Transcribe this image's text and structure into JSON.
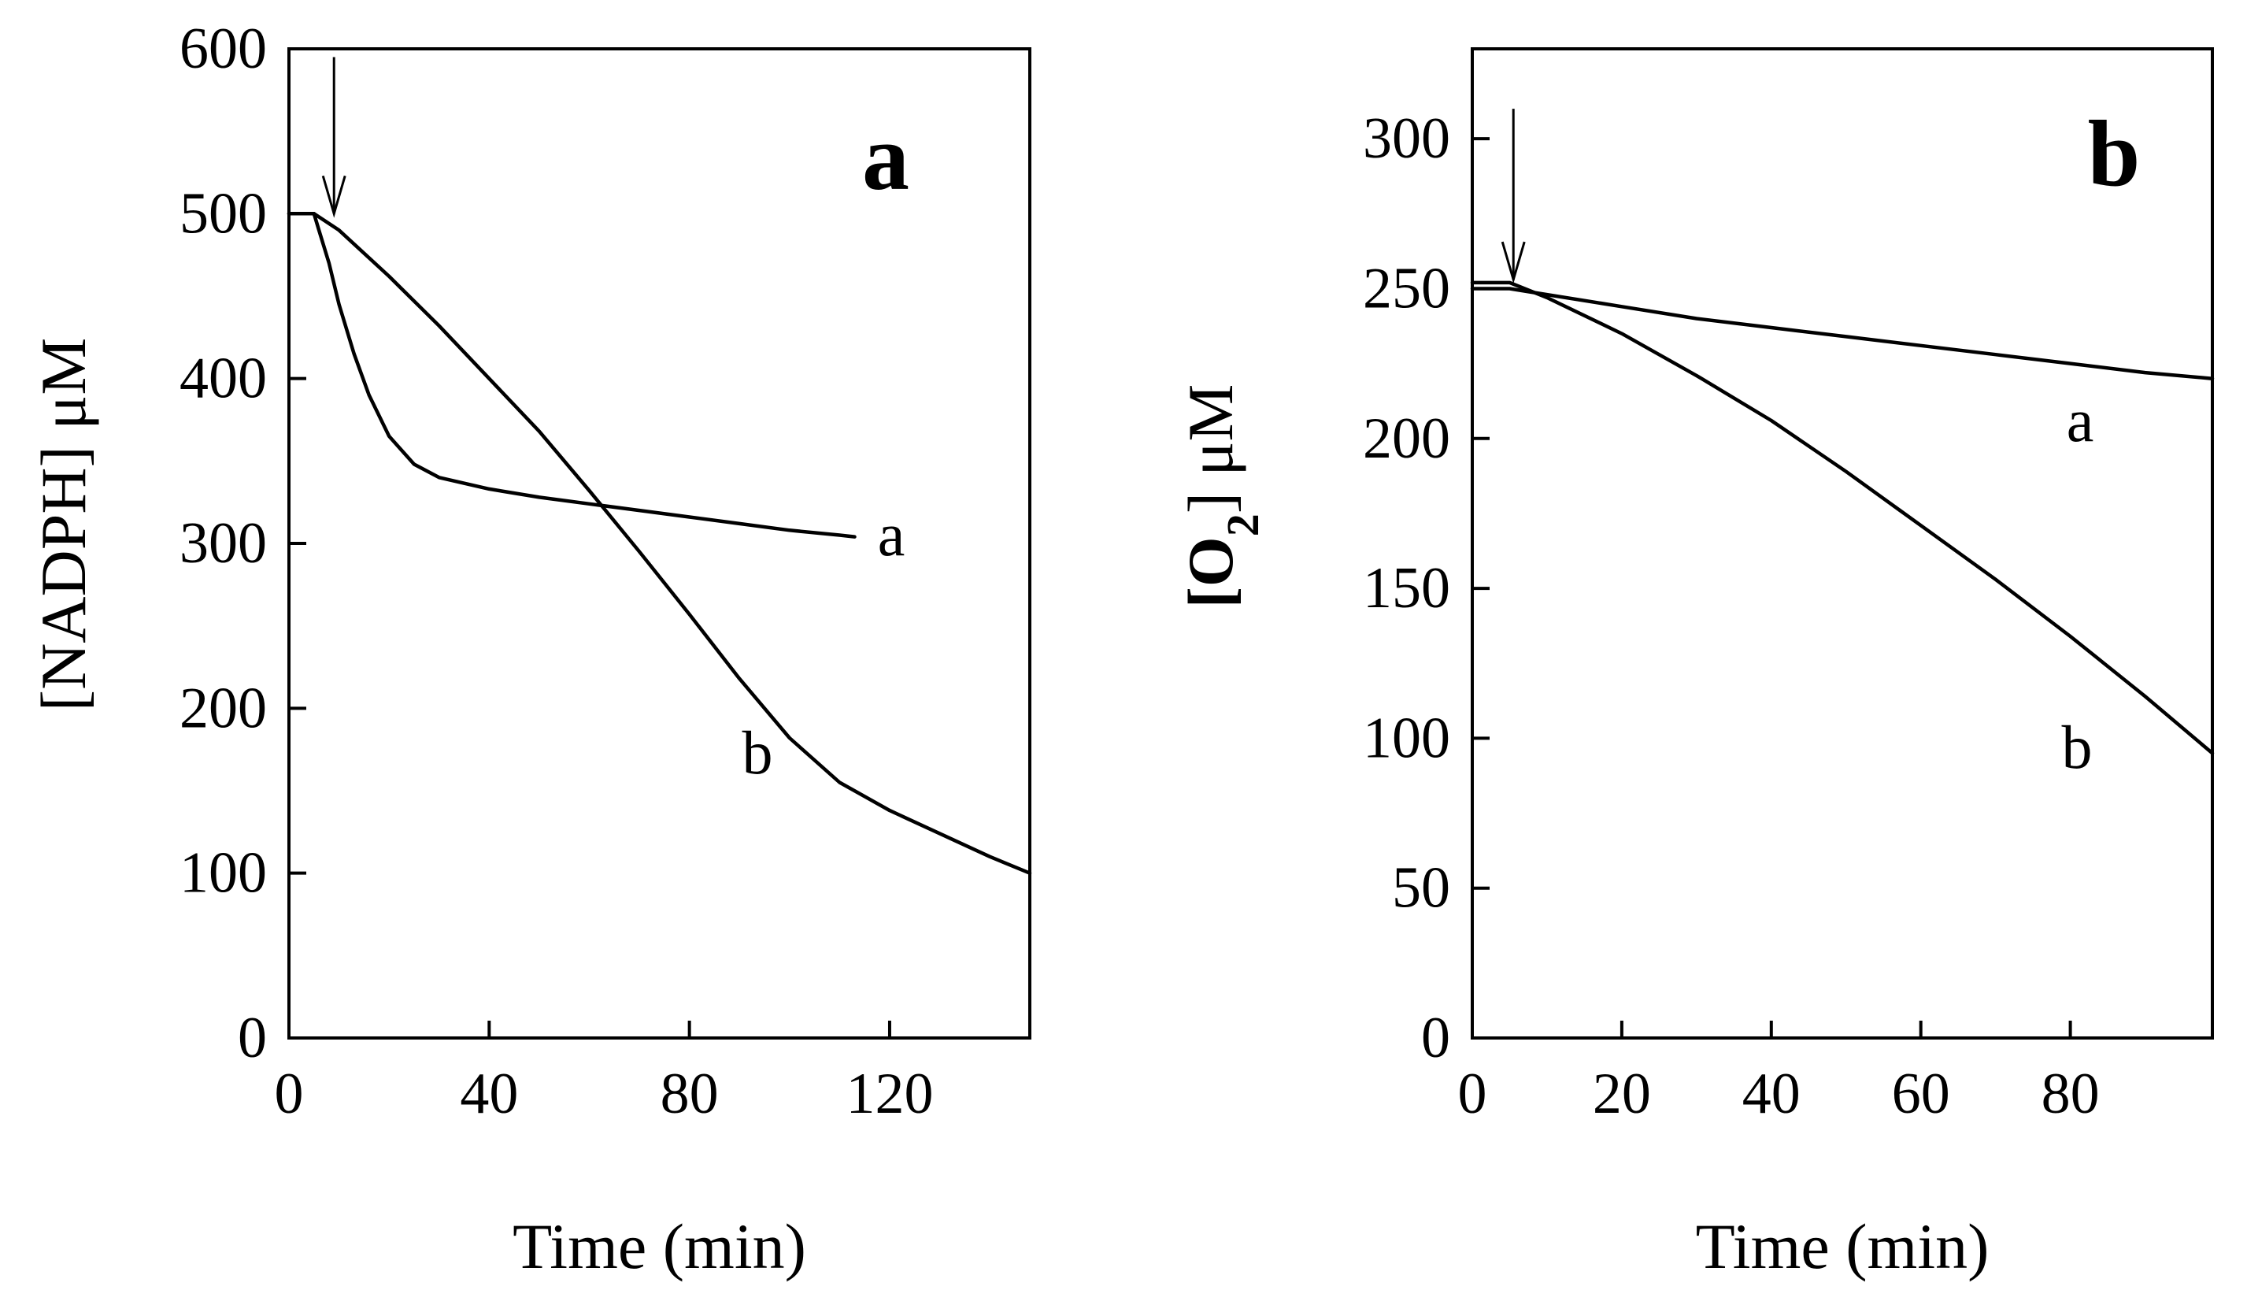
{
  "chart_data": [
    {
      "type": "line",
      "panel_label": "a",
      "xlabel": "Time (min)",
      "ylabel": "[NADPH]  μM",
      "xlim": [
        0,
        148
      ],
      "ylim": [
        0,
        600
      ],
      "xticks": [
        0,
        40,
        80,
        120
      ],
      "yticks": [
        0,
        100,
        200,
        300,
        400,
        500,
        600
      ],
      "grid": false,
      "annotation": {
        "type": "arrow",
        "x": 9,
        "y_from": 595,
        "y_to": 500
      },
      "series": [
        {
          "name": "a",
          "x": [
            0,
            5,
            6,
            8,
            10,
            13,
            16,
            20,
            25,
            30,
            40,
            50,
            60,
            70,
            80,
            90,
            100,
            110,
            113
          ],
          "y": [
            500,
            500,
            490,
            470,
            445,
            415,
            390,
            365,
            348,
            340,
            333,
            328,
            324,
            320,
            316,
            312,
            308,
            305,
            304
          ]
        },
        {
          "name": "b",
          "x": [
            0,
            5,
            10,
            20,
            30,
            40,
            50,
            60,
            70,
            80,
            90,
            100,
            110,
            120,
            130,
            140,
            148
          ],
          "y": [
            500,
            500,
            490,
            462,
            432,
            400,
            368,
            332,
            295,
            257,
            218,
            182,
            155,
            138,
            124,
            110,
            100
          ]
        }
      ]
    },
    {
      "type": "line",
      "panel_label": "b",
      "xlabel": "Time (min)",
      "ylabel": "[O₂]  μM",
      "ylabel_prefix": "[O",
      "ylabel_subscript": "2",
      "ylabel_suffix": "]  μM",
      "xlim": [
        0,
        99
      ],
      "ylim": [
        0,
        330
      ],
      "xticks": [
        0,
        20,
        40,
        60,
        80
      ],
      "yticks": [
        0,
        50,
        100,
        150,
        200,
        250,
        300
      ],
      "grid": false,
      "annotation": {
        "type": "arrow",
        "x": 5.5,
        "y_from": 310,
        "y_to": 253
      },
      "series": [
        {
          "name": "a",
          "x": [
            0,
            5,
            10,
            20,
            30,
            40,
            50,
            60,
            70,
            80,
            90,
            99
          ],
          "y": [
            250,
            250,
            248,
            244,
            240,
            237,
            234,
            231,
            228,
            225,
            222,
            220
          ]
        },
        {
          "name": "b",
          "x": [
            0,
            5,
            10,
            20,
            30,
            40,
            50,
            60,
            70,
            80,
            90,
            99
          ],
          "y": [
            252,
            252,
            247,
            235,
            221,
            206,
            189,
            171,
            153,
            134,
            114,
            95
          ]
        }
      ]
    }
  ]
}
